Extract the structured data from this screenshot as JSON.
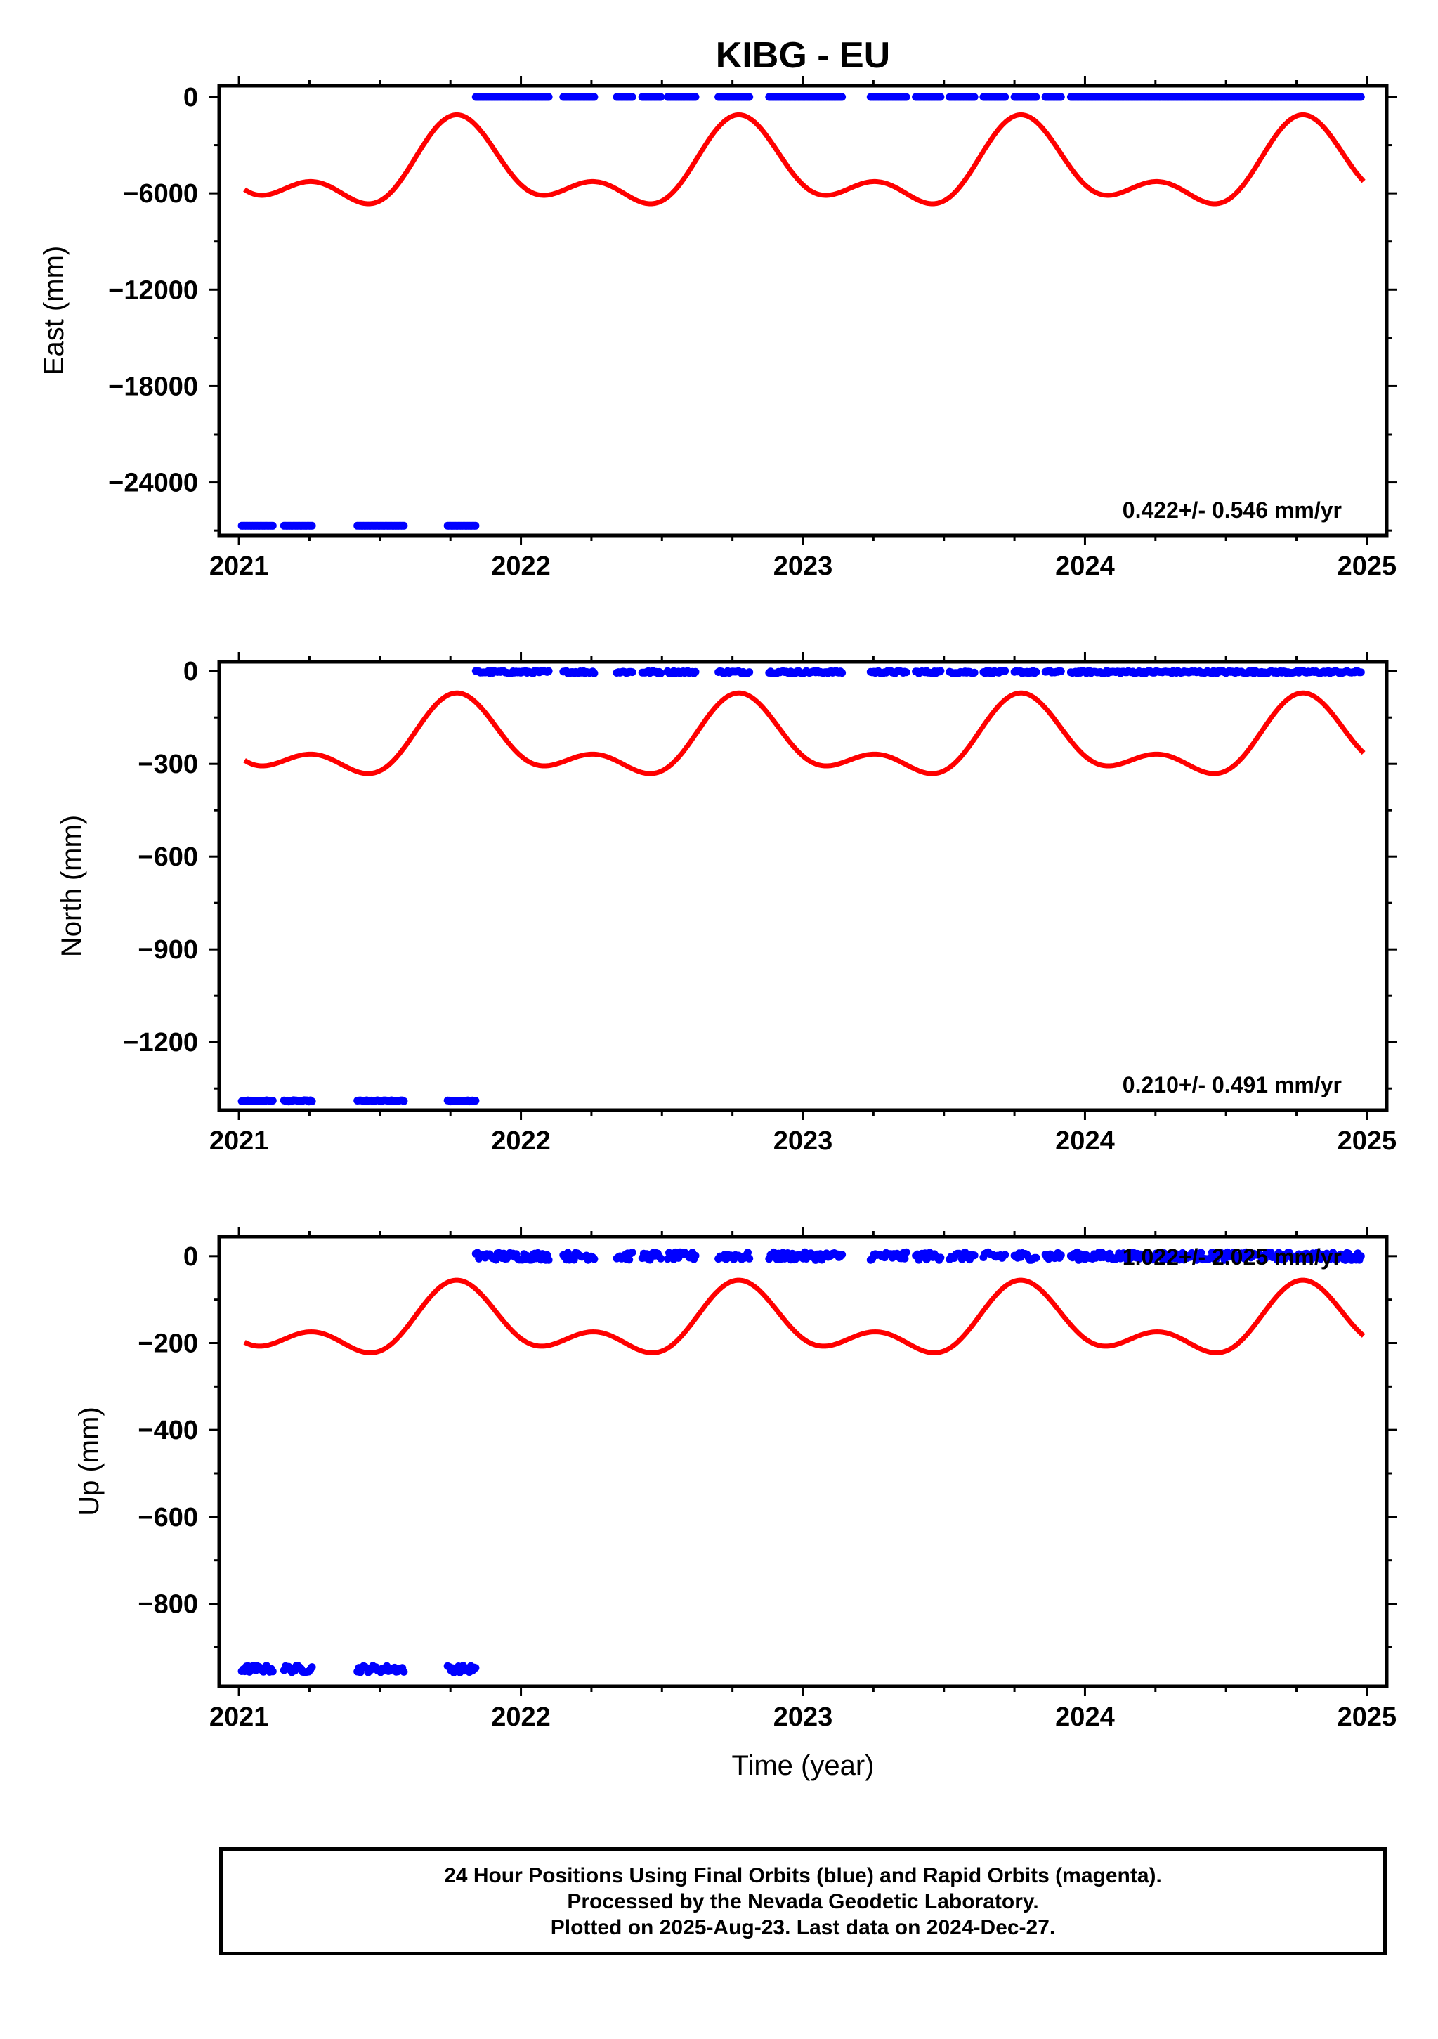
{
  "title": "KIBG - EU",
  "colors": {
    "data": "#0000ff",
    "model": "#ff0000",
    "axis": "#000000"
  },
  "chart_data": [
    {
      "type": "scatter",
      "ylabel": "East (mm)",
      "xlabel": "",
      "xlim": [
        2020.93,
        2025.07
      ],
      "ylim": [
        -27300,
        700
      ],
      "xticks": [
        2021,
        2022,
        2023,
        2024,
        2025
      ],
      "yticks": [
        0,
        -6000,
        -12000,
        -18000,
        -24000
      ],
      "yticks_display": [
        "0",
        "−6000",
        "−12000",
        "−18000",
        "−24000"
      ],
      "rate_text": "0.422+/- 0.546 mm/yr",
      "model": {
        "offset": -4600,
        "annual_amp": 2100,
        "semi_amp": 1400,
        "annual_phase": 2.9,
        "semi_phase": 4.5
      },
      "series": [
        {
          "segments": [
            [
              2021.01,
              2021.12
            ],
            [
              2021.16,
              2021.26
            ],
            [
              2021.42,
              2021.59
            ],
            [
              2021.74,
              2021.84
            ]
          ],
          "level": -26700,
          "noise": 0
        },
        {
          "segments": [
            [
              2021.84,
              2022.1
            ],
            [
              2022.15,
              2022.26
            ],
            [
              2022.34,
              2022.4
            ],
            [
              2022.43,
              2022.5
            ],
            [
              2022.52,
              2022.62
            ],
            [
              2022.7,
              2022.81
            ],
            [
              2022.88,
              2023.14
            ],
            [
              2023.24,
              2023.37
            ],
            [
              2023.4,
              2023.49
            ],
            [
              2023.52,
              2023.61
            ],
            [
              2023.64,
              2023.72
            ],
            [
              2023.75,
              2023.83
            ],
            [
              2023.86,
              2023.92
            ],
            [
              2023.95,
              2024.98
            ]
          ],
          "level": 0,
          "noise": 0
        }
      ]
    },
    {
      "type": "scatter",
      "ylabel": "North (mm)",
      "xlabel": "",
      "xlim": [
        2020.93,
        2025.07
      ],
      "ylim": [
        -1420,
        30
      ],
      "xticks": [
        2021,
        2022,
        2023,
        2024,
        2025
      ],
      "yticks": [
        0,
        -300,
        -600,
        -900,
        -1200
      ],
      "yticks_display": [
        "0",
        "−300",
        "−600",
        "−900",
        "−1200"
      ],
      "rate_text": "0.210+/- 0.491 mm/yr",
      "model": {
        "offset": -235,
        "annual_amp": 100,
        "semi_amp": 65,
        "annual_phase": 2.9,
        "semi_phase": 4.5
      },
      "series": [
        {
          "segments": [
            [
              2021.01,
              2021.12
            ],
            [
              2021.16,
              2021.26
            ],
            [
              2021.42,
              2021.59
            ],
            [
              2021.74,
              2021.84
            ]
          ],
          "level": -1390,
          "noise": 2
        },
        {
          "segments": [
            [
              2021.84,
              2022.1
            ],
            [
              2022.15,
              2022.26
            ],
            [
              2022.34,
              2022.4
            ],
            [
              2022.43,
              2022.5
            ],
            [
              2022.52,
              2022.62
            ],
            [
              2022.7,
              2022.81
            ],
            [
              2022.88,
              2023.14
            ],
            [
              2023.24,
              2023.37
            ],
            [
              2023.4,
              2023.49
            ],
            [
              2023.52,
              2023.61
            ],
            [
              2023.64,
              2023.72
            ],
            [
              2023.75,
              2023.83
            ],
            [
              2023.86,
              2023.92
            ],
            [
              2023.95,
              2024.98
            ]
          ],
          "level": -3,
          "noise": 4
        }
      ]
    },
    {
      "type": "scatter",
      "ylabel": "Up (mm)",
      "xlabel": "Time (year)",
      "xlim": [
        2020.93,
        2025.07
      ],
      "ylim": [
        -990,
        45
      ],
      "xticks": [
        2021,
        2022,
        2023,
        2024,
        2025
      ],
      "yticks": [
        0,
        -200,
        -400,
        -600,
        -800
      ],
      "yticks_display": [
        "0",
        "−200",
        "−400",
        "−600",
        "−800"
      ],
      "rate_text": "1.022+/- 2.025 mm/yr",
      "model": {
        "offset": -160,
        "annual_amp": 60,
        "semi_amp": 45,
        "annual_phase": 2.9,
        "semi_phase": 4.5
      },
      "series": [
        {
          "segments": [
            [
              2021.01,
              2021.12
            ],
            [
              2021.16,
              2021.26
            ],
            [
              2021.42,
              2021.59
            ],
            [
              2021.74,
              2021.84
            ]
          ],
          "level": -950,
          "noise": 8
        },
        {
          "segments": [
            [
              2021.84,
              2022.1
            ],
            [
              2022.15,
              2022.26
            ],
            [
              2022.34,
              2022.4
            ],
            [
              2022.43,
              2022.5
            ],
            [
              2022.52,
              2022.62
            ],
            [
              2022.7,
              2022.81
            ],
            [
              2022.88,
              2023.14
            ],
            [
              2023.24,
              2023.37
            ],
            [
              2023.4,
              2023.49
            ],
            [
              2023.52,
              2023.61
            ],
            [
              2023.64,
              2023.72
            ],
            [
              2023.75,
              2023.83
            ],
            [
              2023.86,
              2023.92
            ],
            [
              2023.95,
              2024.98
            ]
          ],
          "level": 0,
          "noise": 9
        }
      ]
    }
  ],
  "caption": {
    "line1": "24 Hour Positions Using Final Orbits (blue) and Rapid Orbits (magenta).",
    "line2": "Processed by the Nevada Geodetic Laboratory.",
    "line3": "Plotted on 2025-Aug-23. Last data on 2024-Dec-27."
  }
}
